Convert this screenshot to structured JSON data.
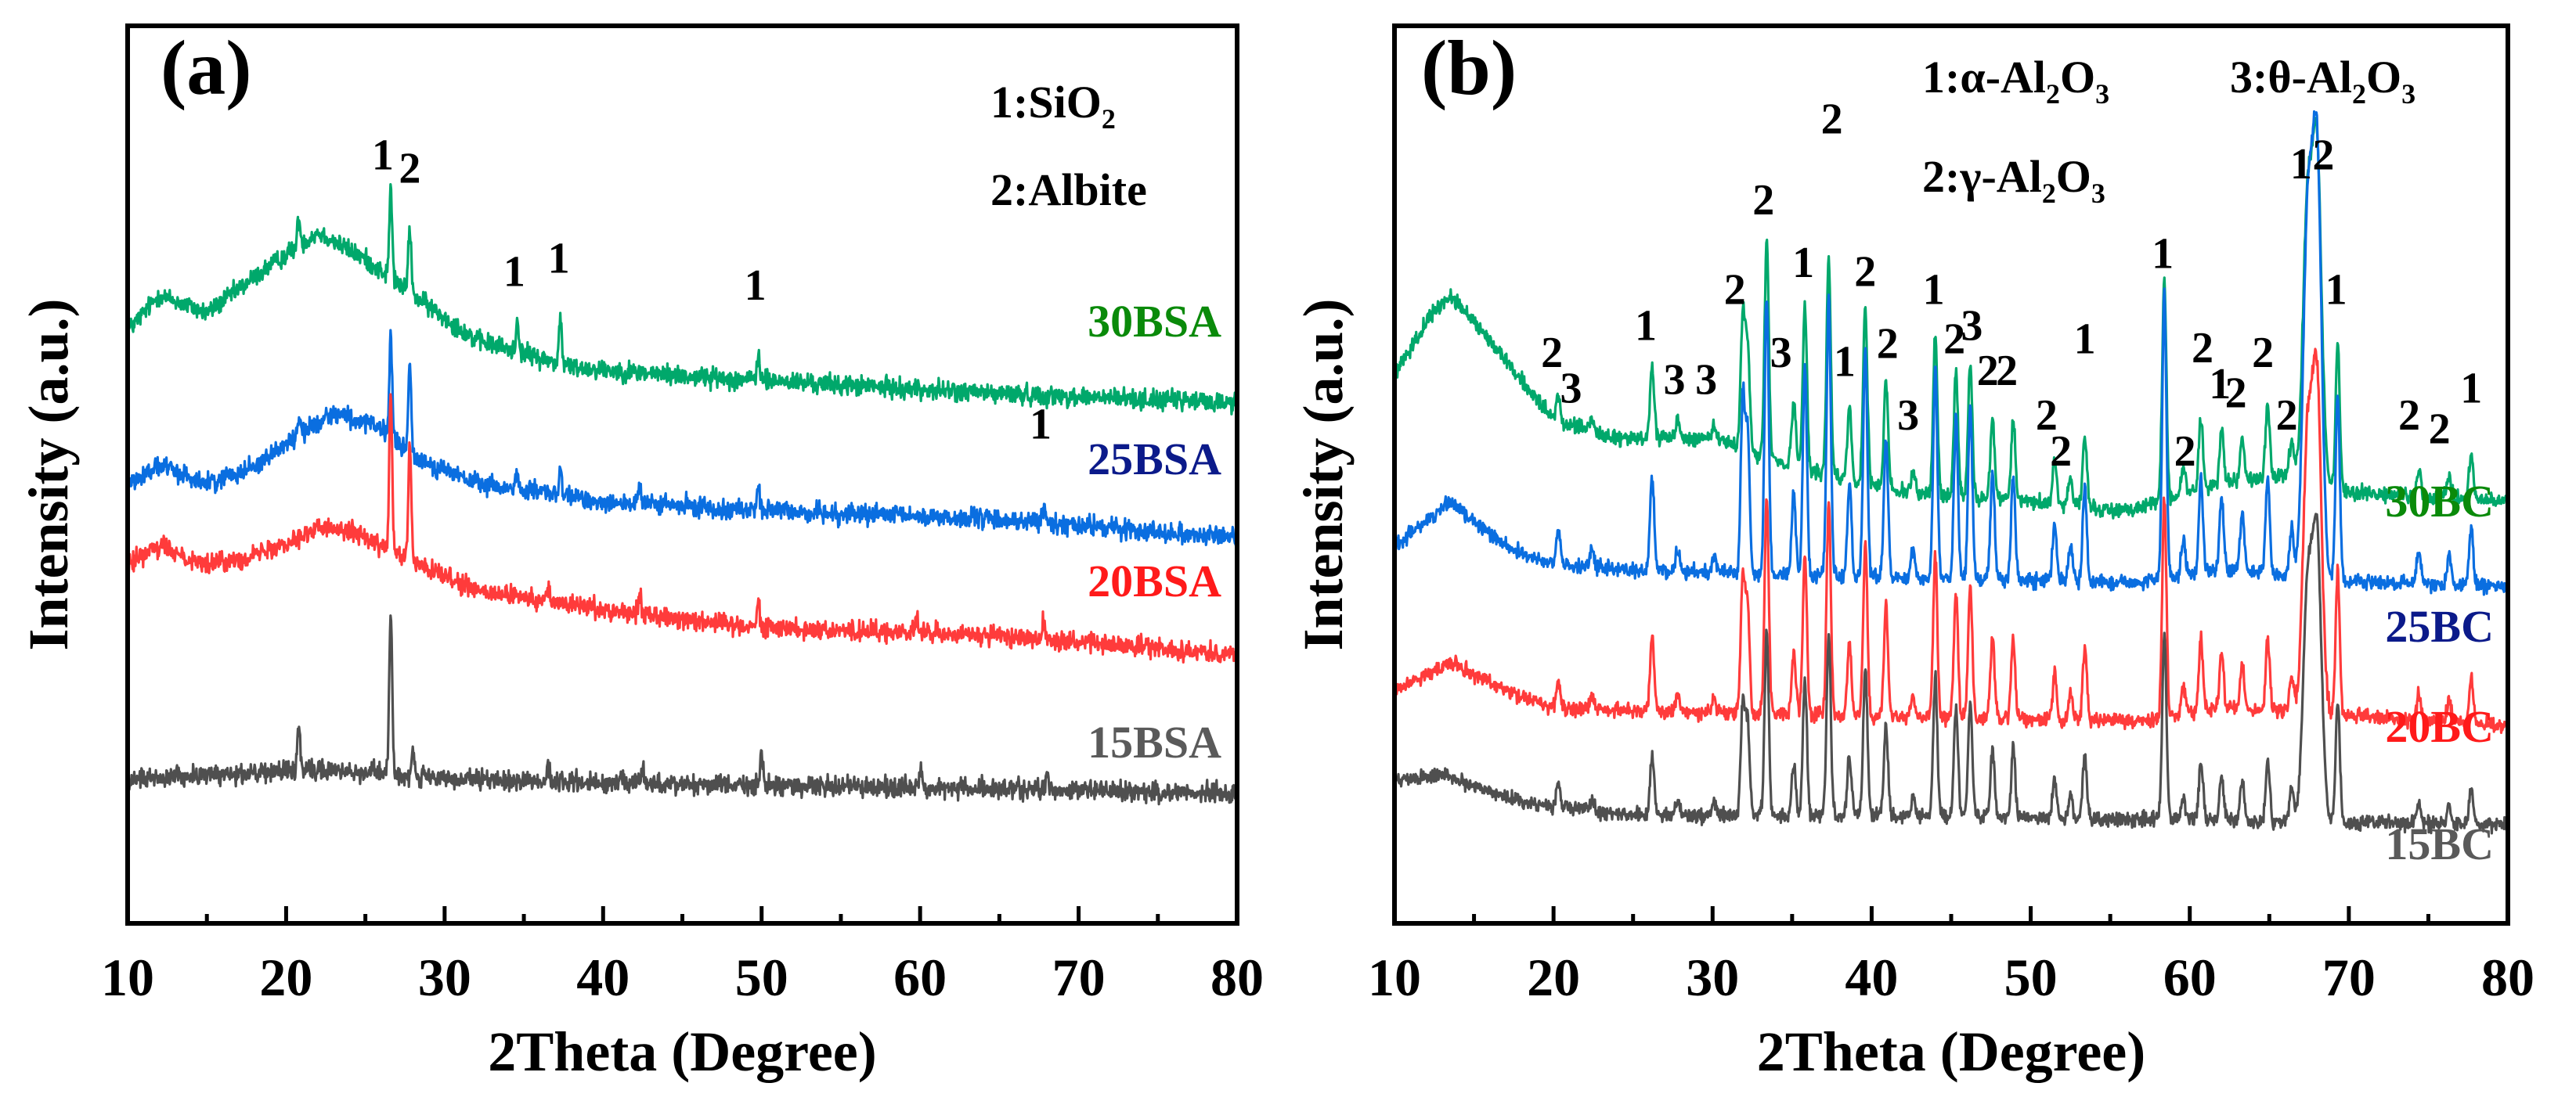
{
  "chart_data": [
    {
      "type": "line",
      "panel_label": "(a)",
      "xlabel": "2Theta (Degree)",
      "ylabel": "Intensity (a.u.)",
      "xlim": [
        10,
        80
      ],
      "ylim": [
        0,
        100
      ],
      "xticks": [
        10,
        20,
        30,
        40,
        50,
        60,
        70,
        80
      ],
      "legend": [
        "1:SiO2",
        "2:Albite"
      ],
      "noise": 1.1,
      "peak_width": 0.09,
      "series": [
        {
          "name": "30BSA",
          "color": "#00a86b",
          "label_color": "#0a8a0a",
          "background": [
            [
              10,
              66
            ],
            [
              12,
              70
            ],
            [
              15,
              68
            ],
            [
              18,
              72
            ],
            [
              22,
              77
            ],
            [
              25,
              74
            ],
            [
              28,
              70
            ],
            [
              32,
              65
            ],
            [
              38,
              62
            ],
            [
              45,
              61
            ],
            [
              55,
              60
            ],
            [
              65,
              59
            ],
            [
              80,
              58
            ]
          ],
          "peaks": [
            [
              20.8,
              3
            ],
            [
              26.6,
              10
            ],
            [
              27.8,
              7.5
            ],
            [
              34.6,
              3.5
            ],
            [
              37.3,
              5
            ],
            [
              49.8,
              3
            ]
          ]
        },
        {
          "name": "25BSA",
          "color": "#0a6ee0",
          "label_color": "#0b1a8a",
          "background": [
            [
              10,
              49
            ],
            [
              12,
              51
            ],
            [
              15,
              49
            ],
            [
              18,
              51
            ],
            [
              23,
              57
            ],
            [
              26,
              55
            ],
            [
              28,
              52
            ],
            [
              32,
              49
            ],
            [
              40,
              47
            ],
            [
              50,
              46
            ],
            [
              65,
              45
            ],
            [
              80,
              43
            ]
          ],
          "peaks": [
            [
              20.8,
              2
            ],
            [
              26.6,
              11.5
            ],
            [
              27.8,
              10
            ],
            [
              34.6,
              2
            ],
            [
              37.3,
              2.5
            ],
            [
              42.3,
              1.5
            ],
            [
              49.8,
              3
            ],
            [
              67.8,
              2
            ]
          ]
        },
        {
          "name": "20BSA",
          "color": "#ff3b3b",
          "label_color": "#ff1a1a",
          "background": [
            [
              10,
              40
            ],
            [
              12,
              42
            ],
            [
              15,
              40
            ],
            [
              18,
              41
            ],
            [
              22,
              44
            ],
            [
              24,
              44
            ],
            [
              27,
              41
            ],
            [
              32,
              37
            ],
            [
              40,
              35
            ],
            [
              50,
              33
            ],
            [
              65,
              32
            ],
            [
              80,
              30
            ]
          ],
          "peaks": [
            [
              26.6,
              18
            ],
            [
              27.8,
              13.5
            ],
            [
              36.5,
              1.5
            ],
            [
              42.3,
              2
            ],
            [
              49.8,
              3
            ],
            [
              59.8,
              1.5
            ],
            [
              67.8,
              2.5
            ]
          ]
        },
        {
          "name": "15BSA",
          "color": "#4f4f4f",
          "label_color": "#5a5a5a",
          "background": [
            [
              10,
              16
            ],
            [
              20,
              17
            ],
            [
              25,
              17
            ],
            [
              30,
              16
            ],
            [
              80,
              14.5
            ]
          ],
          "peaks": [
            [
              20.8,
              5
            ],
            [
              26.6,
              18
            ],
            [
              28,
              3
            ],
            [
              36.5,
              1.5
            ],
            [
              42.5,
              1.5
            ],
            [
              50,
              3
            ],
            [
              60,
              2
            ],
            [
              68,
              2
            ]
          ]
        }
      ],
      "annotations": [
        {
          "text": "1",
          "x": 26.1,
          "y": 84
        },
        {
          "text": "2",
          "x": 27.8,
          "y": 82.5
        },
        {
          "text": "1",
          "x": 34.4,
          "y": 71
        },
        {
          "text": "1",
          "x": 37.2,
          "y": 72.5
        },
        {
          "text": "1",
          "x": 49.6,
          "y": 69.5
        },
        {
          "text": "1",
          "x": 67.6,
          "y": 54
        }
      ]
    },
    {
      "type": "line",
      "panel_label": "(b)",
      "xlabel": "2Theta (Degree)",
      "ylabel": "Intensity (a.u.)",
      "xlim": [
        10,
        80
      ],
      "ylim": [
        0,
        100
      ],
      "xticks": [
        10,
        20,
        30,
        40,
        50,
        60,
        70,
        80
      ],
      "legend": [
        "1:α-Al2O3",
        "2:γ-Al2O3",
        "3:θ-Al2O3"
      ],
      "noise": 0.8,
      "peak_width": 0.13,
      "peaks": [
        [
          20.3,
          3
        ],
        [
          22.4,
          1.5
        ],
        [
          26.2,
          8
        ],
        [
          27.8,
          2
        ],
        [
          30.1,
          1.5
        ],
        [
          31.9,
          15
        ],
        [
          32.2,
          12
        ],
        [
          33.4,
          24
        ],
        [
          35.1,
          7
        ],
        [
          35.8,
          18
        ],
        [
          37.3,
          24
        ],
        [
          38.6,
          8
        ],
        [
          39.6,
          19.5
        ],
        [
          40.9,
          12
        ],
        [
          42.6,
          2.5
        ],
        [
          44.0,
          18
        ],
        [
          45.3,
          14
        ],
        [
          46.2,
          15
        ],
        [
          47.6,
          9
        ],
        [
          48.9,
          9
        ],
        [
          51.5,
          5
        ],
        [
          52.5,
          3
        ],
        [
          53.4,
          8
        ],
        [
          58.4,
          24.5
        ],
        [
          59.6,
          3
        ],
        [
          60.7,
          8
        ],
        [
          62.0,
          6
        ],
        [
          63.3,
          5
        ],
        [
          64.9,
          8
        ],
        [
          66.4,
          4
        ],
        [
          67.4,
          29.5
        ],
        [
          68.0,
          36
        ],
        [
          69.3,
          16
        ],
        [
          74.4,
          3
        ],
        [
          76.3,
          2.5
        ],
        [
          77.7,
          5
        ]
      ],
      "series": [
        {
          "name": "30BC",
          "color": "#00a86b",
          "label_color": "#0a8a0a",
          "peak_scale": 1.0,
          "background": [
            [
              10,
              61
            ],
            [
              12,
              67
            ],
            [
              13.5,
              70
            ],
            [
              16,
              65
            ],
            [
              20,
              56
            ],
            [
              24,
              54
            ],
            [
              30,
              54
            ],
            [
              35,
              51
            ],
            [
              42,
              48
            ],
            [
              50,
              47
            ],
            [
              56,
              46
            ],
            [
              62,
              49
            ],
            [
              66,
              50
            ],
            [
              70,
              48
            ],
            [
              80,
              47
            ]
          ]
        },
        {
          "name": "25BC",
          "color": "#0a6ee0",
          "label_color": "#0b1a8a",
          "peak_scale": 1.3,
          "background": [
            [
              10,
              42
            ],
            [
              13.5,
              47
            ],
            [
              17,
              42
            ],
            [
              20,
              40
            ],
            [
              30,
              39
            ],
            [
              40,
              38.5
            ],
            [
              57,
              38
            ],
            [
              62,
              39.5
            ],
            [
              70,
              38
            ],
            [
              80,
              37.5
            ]
          ]
        },
        {
          "name": "20BC",
          "color": "#ff3b3b",
          "label_color": "#ff1a1a",
          "peak_scale": 1.0,
          "background": [
            [
              10,
              26
            ],
            [
              13.5,
              29
            ],
            [
              17,
              26
            ],
            [
              20,
              24
            ],
            [
              40,
              23
            ],
            [
              57,
              22.5
            ],
            [
              62,
              24
            ],
            [
              80,
              22
            ]
          ]
        },
        {
          "name": "15BC",
          "color": "#4f4f4f",
          "label_color": "#5a5a5a",
          "peak_scale": 0.85,
          "background": [
            [
              10,
              16
            ],
            [
              13,
              16.5
            ],
            [
              18,
              13.5
            ],
            [
              25,
              12
            ],
            [
              31,
              12
            ],
            [
              40,
              12
            ],
            [
              80,
              11
            ]
          ]
        }
      ],
      "annotations": [
        {
          "text": "2",
          "x": 19.9,
          "y": 62
        },
        {
          "text": "3",
          "x": 21.1,
          "y": 58
        },
        {
          "text": "1",
          "x": 25.8,
          "y": 65
        },
        {
          "text": "3",
          "x": 27.6,
          "y": 59
        },
        {
          "text": "3",
          "x": 29.6,
          "y": 59
        },
        {
          "text": "2",
          "x": 31.4,
          "y": 69
        },
        {
          "text": "2",
          "x": 33.2,
          "y": 79
        },
        {
          "text": "3",
          "x": 34.3,
          "y": 62
        },
        {
          "text": "1",
          "x": 35.7,
          "y": 72
        },
        {
          "text": "2",
          "x": 37.5,
          "y": 88
        },
        {
          "text": "1",
          "x": 38.3,
          "y": 61
        },
        {
          "text": "2",
          "x": 39.6,
          "y": 71
        },
        {
          "text": "2",
          "x": 41.0,
          "y": 63
        },
        {
          "text": "3",
          "x": 42.3,
          "y": 55
        },
        {
          "text": "1",
          "x": 43.9,
          "y": 69
        },
        {
          "text": "2",
          "x": 45.2,
          "y": 63.5
        },
        {
          "text": "3",
          "x": 46.3,
          "y": 65
        },
        {
          "text": "2",
          "x": 47.3,
          "y": 60
        },
        {
          "text": "2",
          "x": 48.5,
          "y": 60
        },
        {
          "text": "2",
          "x": 51.0,
          "y": 55
        },
        {
          "text": "2",
          "x": 51.9,
          "y": 51
        },
        {
          "text": "1",
          "x": 53.4,
          "y": 63.5
        },
        {
          "text": "1",
          "x": 58.3,
          "y": 73
        },
        {
          "text": "2",
          "x": 59.7,
          "y": 51
        },
        {
          "text": "2",
          "x": 60.8,
          "y": 62.5
        },
        {
          "text": "1",
          "x": 61.9,
          "y": 58.5
        },
        {
          "text": "2",
          "x": 62.9,
          "y": 57.5
        },
        {
          "text": "2",
          "x": 64.6,
          "y": 62
        },
        {
          "text": "2",
          "x": 66.1,
          "y": 55
        },
        {
          "text": "1",
          "x": 67.0,
          "y": 83
        },
        {
          "text": "2",
          "x": 68.4,
          "y": 84
        },
        {
          "text": "1",
          "x": 69.2,
          "y": 69
        },
        {
          "text": "2",
          "x": 73.8,
          "y": 55
        },
        {
          "text": "2",
          "x": 75.7,
          "y": 53.5
        },
        {
          "text": "1",
          "x": 77.7,
          "y": 58
        }
      ]
    }
  ]
}
